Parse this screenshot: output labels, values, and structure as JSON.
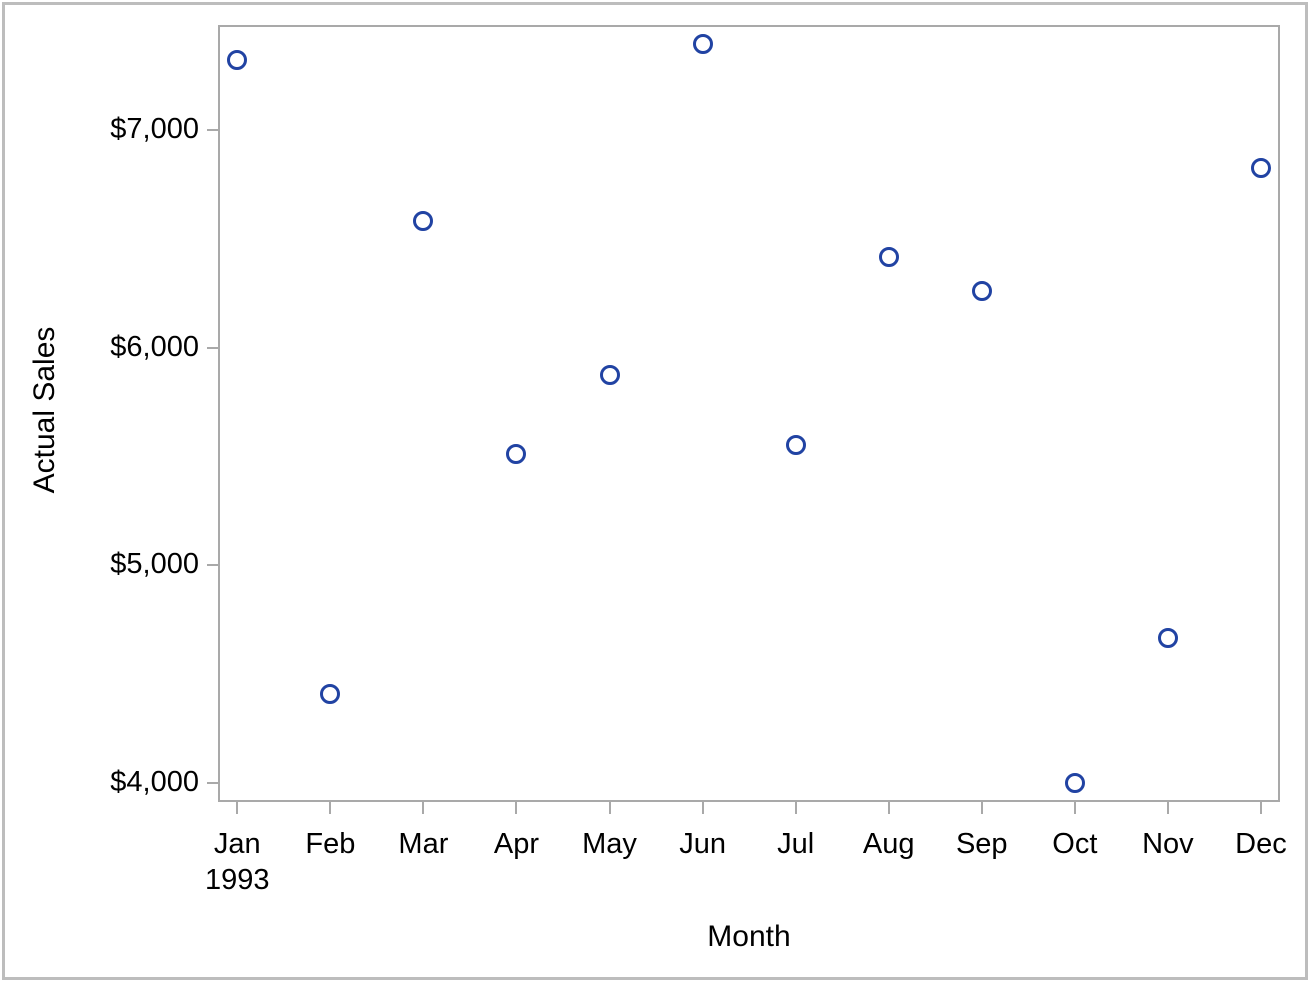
{
  "chart_data": {
    "type": "scatter",
    "title": "",
    "xlabel": "Month",
    "ylabel": "Actual Sales",
    "categories": [
      "Jan",
      "Feb",
      "Mar",
      "Apr",
      "May",
      "Jun",
      "Jul",
      "Aug",
      "Sep",
      "Oct",
      "Nov",
      "Dec"
    ],
    "year_sub_label": "1993",
    "year_sub_label_under": "Jan",
    "values": [
      7320,
      4410,
      6580,
      5510,
      5875,
      7395,
      5550,
      6415,
      6260,
      4000,
      4665,
      6825
    ],
    "y_ticks": [
      {
        "label": "$7,000",
        "value": 7000
      },
      {
        "label": "$6,000",
        "value": 6000
      },
      {
        "label": "$5,000",
        "value": 5000
      },
      {
        "label": "$4,000",
        "value": 4000
      }
    ],
    "ylim": [
      3920,
      7480
    ],
    "grid": false,
    "legend": "none",
    "marker": "open-circle",
    "colors": {
      "marker": "#2143a3",
      "axis_line": "#a9a9a9",
      "outer_border": "#bdbdbd",
      "text": "#000000",
      "background": "#ffffff"
    }
  }
}
